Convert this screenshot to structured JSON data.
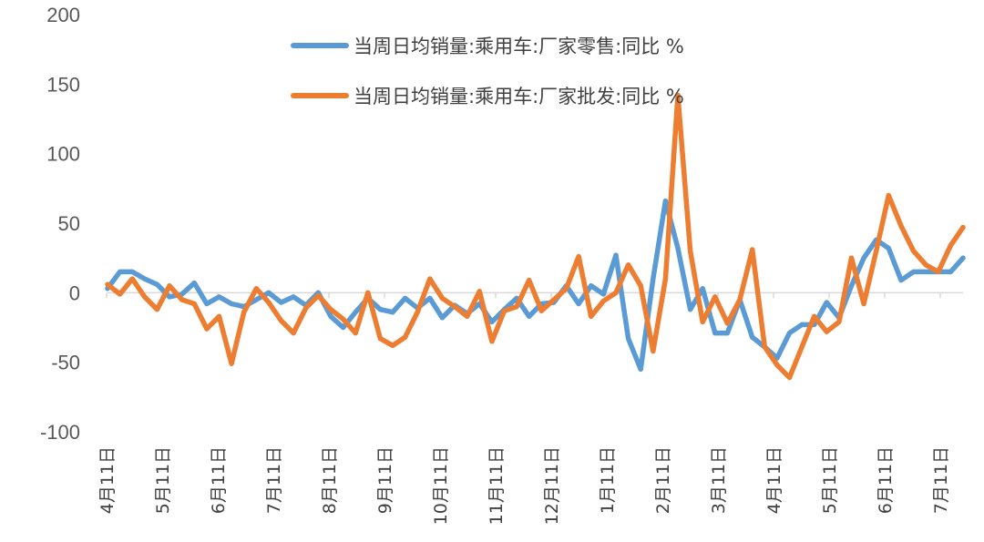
{
  "chart_data": {
    "type": "line",
    "title": "",
    "xlabel": "",
    "ylabel": "",
    "ylim": [
      -100,
      200
    ],
    "yticks": [
      -100,
      -50,
      0,
      50,
      100,
      150,
      200
    ],
    "ytick_labels": [
      "-100",
      "-50",
      "0",
      "50",
      "100",
      "150",
      "200"
    ],
    "xtick_labels": [
      "4月11日",
      "5月11日",
      "6月11日",
      "7月11日",
      "8月11日",
      "9月11日",
      "10月11日",
      "11月11日",
      "12月11日",
      "1月11日",
      "2月11日",
      "3月11日",
      "4月11日",
      "5月11日",
      "6月11日",
      "7月11日"
    ],
    "grid": false,
    "legend_position": "top",
    "n_points": 70,
    "series": [
      {
        "name": "当周日均销量:乘用车:厂家零售:同比 %",
        "color": "#5B9BD5",
        "values": [
          3,
          15,
          15,
          10,
          6,
          -3,
          -1,
          7,
          -8,
          -3,
          -8,
          -10,
          -5,
          0,
          -7,
          -3,
          -9,
          0,
          -17,
          -25,
          -14,
          -4,
          -12,
          -14,
          -4,
          -11,
          -4,
          -18,
          -9,
          -15,
          -8,
          -21,
          -12,
          -4,
          -17,
          -8,
          -7,
          5,
          -8,
          5,
          -1,
          27,
          -33,
          -55,
          10,
          66,
          32,
          -12,
          3,
          -29,
          -29,
          -5,
          -32,
          -39,
          -47,
          -29,
          -23,
          -23,
          -7,
          -18,
          5,
          25,
          38,
          32,
          9,
          15,
          15,
          15,
          15,
          25
        ]
      },
      {
        "name": "当周日均销量:乘用车:厂家批发:同比 %",
        "color": "#ED7D31",
        "values": [
          6,
          -1,
          10,
          -3,
          -12,
          5,
          -5,
          -8,
          -26,
          -17,
          -51,
          -14,
          3,
          -7,
          -20,
          -29,
          -11,
          -2,
          -12,
          -19,
          -29,
          0,
          -33,
          -38,
          -32,
          -14,
          10,
          -4,
          -10,
          -17,
          1,
          -35,
          -13,
          -10,
          9,
          -13,
          -5,
          3,
          26,
          -17,
          -6,
          0,
          20,
          5,
          -42,
          10,
          142,
          30,
          -21,
          -3,
          -22,
          -5,
          31,
          -39,
          -52,
          -61,
          -39,
          -17,
          -28,
          -21,
          25,
          -8,
          30,
          70,
          48,
          30,
          20,
          15,
          34,
          47
        ]
      }
    ]
  }
}
